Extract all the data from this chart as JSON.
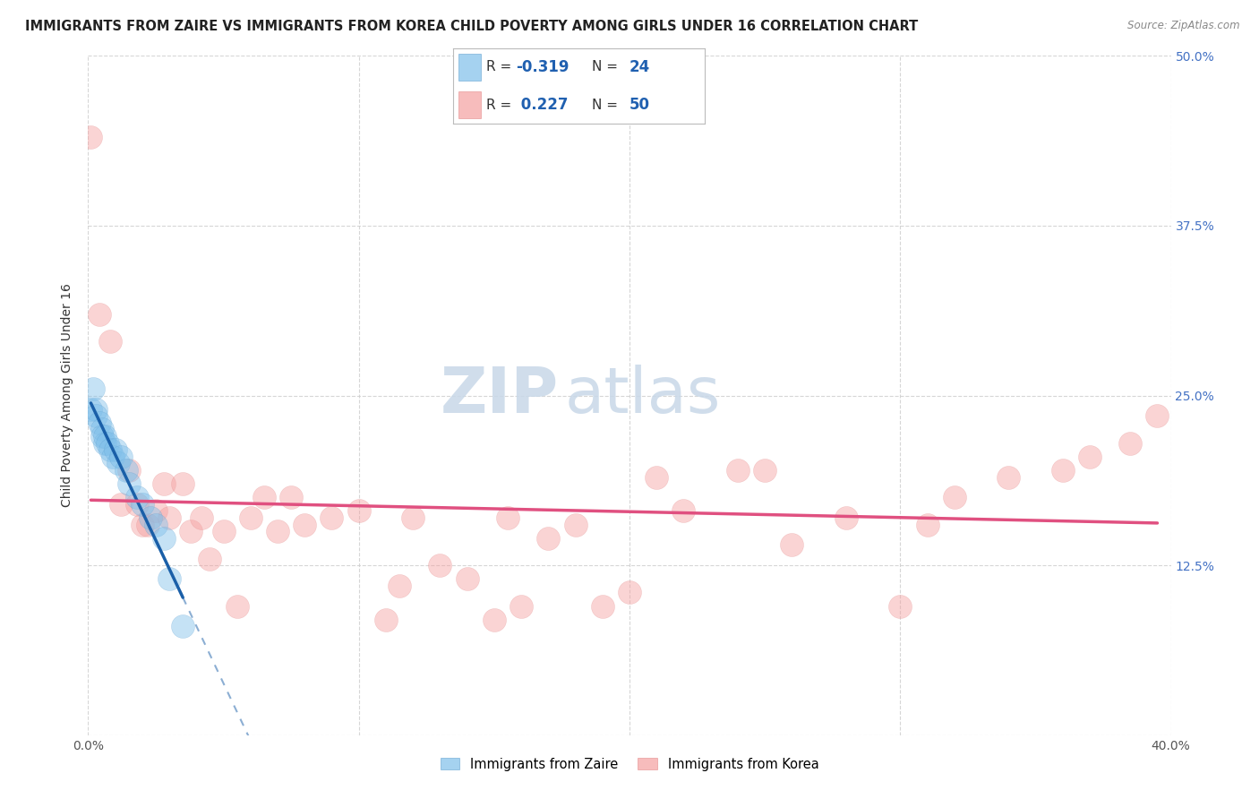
{
  "title": "IMMIGRANTS FROM ZAIRE VS IMMIGRANTS FROM KOREA CHILD POVERTY AMONG GIRLS UNDER 16 CORRELATION CHART",
  "source": "Source: ZipAtlas.com",
  "ylabel": "Child Poverty Among Girls Under 16",
  "watermark_zip": "ZIP",
  "watermark_atlas": "atlas",
  "xlim": [
    0.0,
    0.4
  ],
  "ylim": [
    0.0,
    0.5
  ],
  "xticks": [
    0.0,
    0.1,
    0.2,
    0.3,
    0.4
  ],
  "yticks": [
    0.0,
    0.125,
    0.25,
    0.375,
    0.5
  ],
  "ytick_labels_left": [
    "",
    "",
    "",
    "",
    ""
  ],
  "xtick_labels": [
    "0.0%",
    "",
    "",
    "",
    "40.0%"
  ],
  "right_ytick_labels": [
    "",
    "12.5%",
    "25.0%",
    "37.5%",
    "50.0%"
  ],
  "legend_labels": [
    "Immigrants from Zaire",
    "Immigrants from Korea"
  ],
  "blue_color": "#7fbfea",
  "pink_color": "#f4a0a0",
  "blue_line_color": "#1a5fa8",
  "pink_line_color": "#e05080",
  "blue_dot_edge": "#5599cc",
  "pink_dot_edge": "#e08080",
  "zaire_x": [
    0.001,
    0.002,
    0.003,
    0.003,
    0.004,
    0.005,
    0.005,
    0.006,
    0.006,
    0.007,
    0.008,
    0.009,
    0.01,
    0.011,
    0.012,
    0.014,
    0.015,
    0.018,
    0.02,
    0.023,
    0.025,
    0.028,
    0.03,
    0.035
  ],
  "zaire_y": [
    0.24,
    0.255,
    0.24,
    0.235,
    0.23,
    0.225,
    0.22,
    0.215,
    0.22,
    0.215,
    0.21,
    0.205,
    0.21,
    0.2,
    0.205,
    0.195,
    0.185,
    0.175,
    0.17,
    0.16,
    0.155,
    0.145,
    0.115,
    0.08
  ],
  "korea_x": [
    0.001,
    0.004,
    0.008,
    0.012,
    0.015,
    0.018,
    0.02,
    0.022,
    0.025,
    0.028,
    0.03,
    0.035,
    0.038,
    0.042,
    0.045,
    0.05,
    0.055,
    0.06,
    0.065,
    0.07,
    0.075,
    0.08,
    0.09,
    0.1,
    0.11,
    0.115,
    0.12,
    0.13,
    0.14,
    0.15,
    0.155,
    0.16,
    0.17,
    0.18,
    0.19,
    0.2,
    0.21,
    0.22,
    0.24,
    0.25,
    0.26,
    0.28,
    0.3,
    0.31,
    0.32,
    0.34,
    0.36,
    0.37,
    0.385,
    0.395
  ],
  "korea_y": [
    0.44,
    0.31,
    0.29,
    0.17,
    0.195,
    0.17,
    0.155,
    0.155,
    0.165,
    0.185,
    0.16,
    0.185,
    0.15,
    0.16,
    0.13,
    0.15,
    0.095,
    0.16,
    0.175,
    0.15,
    0.175,
    0.155,
    0.16,
    0.165,
    0.085,
    0.11,
    0.16,
    0.125,
    0.115,
    0.085,
    0.16,
    0.095,
    0.145,
    0.155,
    0.095,
    0.105,
    0.19,
    0.165,
    0.195,
    0.195,
    0.14,
    0.16,
    0.095,
    0.155,
    0.175,
    0.19,
    0.195,
    0.205,
    0.215,
    0.235
  ],
  "background_color": "#ffffff",
  "grid_color": "#cccccc",
  "title_fontsize": 10.5,
  "axis_fontsize": 10,
  "dot_size": 350,
  "dot_alpha": 0.45,
  "figwidth": 14.06,
  "figheight": 8.92
}
